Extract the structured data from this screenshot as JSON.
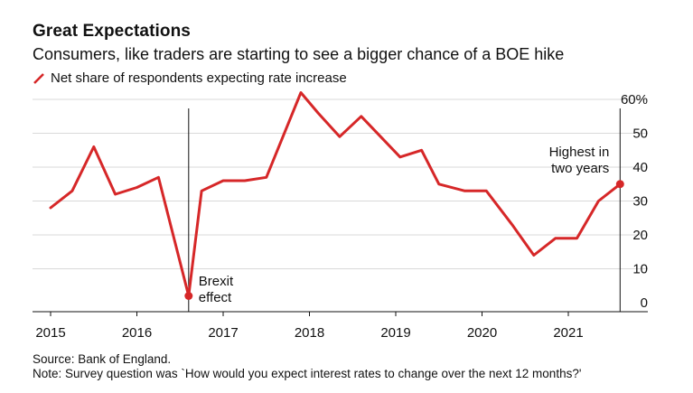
{
  "header": {
    "title": "Great Expectations",
    "subtitle": "Consumers, like traders are starting to see a bigger chance of a BOE hike"
  },
  "footer": {
    "source": "Source: Bank of England.",
    "note": "Note: Survey question was `How would you expect interest rates to change over the next 12 months?'"
  },
  "colors": {
    "series": "#d62728",
    "grid": "#d9d9d9",
    "axis": "#111111"
  },
  "chart_data": {
    "type": "line",
    "title": "Great Expectations",
    "subtitle": "Consumers, like traders are starting to see a bigger chance of a BOE hike",
    "xlabel": "",
    "ylabel": "",
    "ylim": [
      0,
      60
    ],
    "y_ticks": [
      0,
      10,
      20,
      30,
      40,
      50,
      60
    ],
    "y_tick_labels": [
      "0",
      "10",
      "20",
      "30",
      "40",
      "50",
      "60%"
    ],
    "y_axis_side": "right",
    "x_range": [
      2014.9,
      2022.0
    ],
    "x_ticks": [
      2015,
      2016,
      2017,
      2018,
      2019,
      2020,
      2021
    ],
    "x_tick_labels": [
      "2015",
      "2016",
      "2017",
      "2018",
      "2019",
      "2020",
      "2021"
    ],
    "grid": "horizontal",
    "legend_position": "top-left",
    "series": [
      {
        "name": "Net share of respondents expecting rate increase",
        "x": [
          2015.0,
          2015.25,
          2015.5,
          2015.75,
          2016.0,
          2016.25,
          2016.6,
          2016.75,
          2017.0,
          2017.25,
          2017.5,
          2017.9,
          2018.1,
          2018.35,
          2018.6,
          2019.05,
          2019.3,
          2019.5,
          2019.8,
          2020.05,
          2020.35,
          2020.6,
          2020.85,
          2021.1,
          2021.35,
          2021.6
        ],
        "y": [
          28,
          33,
          46,
          32,
          34,
          37,
          2,
          33,
          36,
          36,
          37,
          62,
          56,
          49,
          55,
          43,
          45,
          35,
          33,
          33,
          23,
          14,
          19,
          19,
          30,
          35
        ]
      }
    ],
    "reference_lines": [
      {
        "x": 2016.6,
        "label_lines": [
          "Brexit",
          "effect"
        ]
      },
      {
        "x": 2021.6,
        "label_lines": [
          "Highest in",
          "two years"
        ]
      }
    ],
    "highlight_points": [
      {
        "x": 2016.6,
        "y": 2
      },
      {
        "x": 2021.6,
        "y": 35
      }
    ]
  }
}
